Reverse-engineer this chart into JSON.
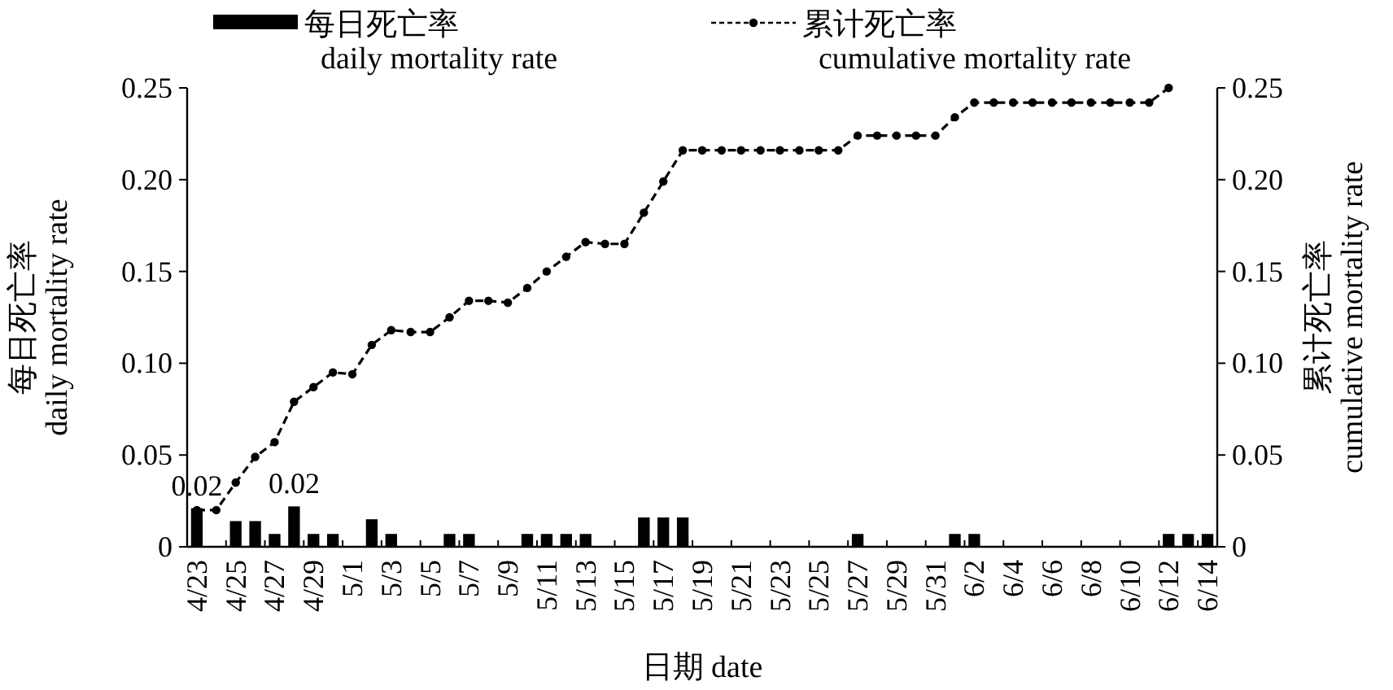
{
  "chart_data": {
    "type": "bar",
    "categories": [
      "4/23",
      null,
      "4/25",
      null,
      "4/27",
      null,
      "4/29",
      null,
      "5/1",
      null,
      "5/3",
      null,
      "5/5",
      null,
      "5/7",
      null,
      "5/9",
      null,
      "5/11",
      null,
      "5/13",
      null,
      "5/15",
      null,
      "5/17",
      null,
      "5/19",
      null,
      "5/21",
      null,
      "5/23",
      null,
      "5/25",
      null,
      "5/27",
      null,
      "5/29",
      null,
      "5/31",
      null,
      "6/2",
      null,
      "6/4",
      null,
      "6/6",
      null,
      "6/8",
      null,
      "6/10",
      null,
      "6/12",
      null,
      "6/14"
    ],
    "xlabel": "日期  date",
    "ylabel": "每日死亡率\ndaily mortality rate",
    "y2label": "累计死亡率\ncumulative mortality rate",
    "ylim": [
      0,
      0.25
    ],
    "yticks": [
      0,
      0.05,
      {
        "value": 0.1,
        "label": "0.10"
      },
      0.15,
      {
        "value": 0.2,
        "label": "0.20"
      },
      0.25
    ],
    "y2lim": [
      0,
      0.25
    ],
    "y2ticks": [
      0,
      0.05,
      {
        "value": 0.1,
        "label": "0.10"
      },
      0.15,
      {
        "value": 0.2,
        "label": "0.20"
      },
      0.25
    ],
    "legend": "top",
    "grid": false,
    "marker": "circle",
    "line_style": "dashed",
    "series": [
      {
        "name": "每日死亡率\ndaily mortality rate",
        "type": "bar",
        "color": "#000000",
        "values": [
          0.021,
          0,
          0.014,
          0.014,
          0.007,
          0.022,
          0.007,
          0.007,
          0,
          0.015,
          0.007,
          0,
          0,
          0.007,
          0.007,
          0,
          0,
          0.007,
          0.007,
          0.007,
          0.007,
          0,
          0,
          0.016,
          0.016,
          0.016,
          0,
          0,
          0,
          0,
          0,
          0,
          0,
          0,
          0.007,
          0,
          0,
          0,
          0,
          0.007,
          0.007,
          0,
          0,
          0,
          0,
          0,
          0,
          0,
          0,
          0,
          0.007,
          0.007,
          0.007
        ],
        "value_labels": [
          "0.02",
          null,
          null,
          null,
          null,
          "0.02",
          null,
          null,
          null,
          null,
          null,
          null,
          null,
          null,
          null,
          null,
          null,
          null,
          null,
          null,
          null,
          null,
          null,
          null,
          null,
          null,
          null,
          null,
          null,
          null,
          null,
          null,
          null,
          null,
          null,
          null,
          null,
          null,
          null,
          null,
          null,
          null,
          null,
          null,
          null,
          null,
          null,
          null,
          null,
          null,
          null,
          null,
          null
        ]
      },
      {
        "name": "累计死亡率\ncumulative mortality rate",
        "type": "line",
        "axis": "y2",
        "color": "#000000",
        "values": [
          0.02,
          0.02,
          0.035,
          0.049,
          0.057,
          0.079,
          0.087,
          0.095,
          0.094,
          0.11,
          0.118,
          0.117,
          0.117,
          0.125,
          0.134,
          0.134,
          0.133,
          0.141,
          0.15,
          0.158,
          0.166,
          0.165,
          0.165,
          0.182,
          0.199,
          0.216,
          0.216,
          0.216,
          0.216,
          0.216,
          0.216,
          0.216,
          0.216,
          0.216,
          0.224,
          0.224,
          0.224,
          0.224,
          0.224,
          0.234,
          0.242,
          0.242,
          0.242,
          0.242,
          0.242,
          0.242,
          0.242,
          0.242,
          0.242,
          0.242,
          0.25,
          null,
          null
        ]
      }
    ]
  }
}
